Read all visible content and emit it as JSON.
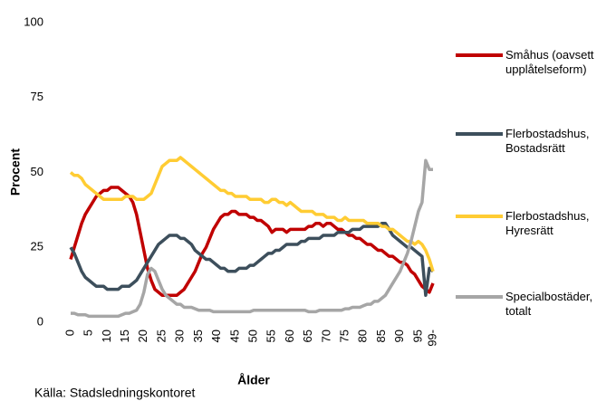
{
  "chart_data": {
    "type": "line",
    "y_label": "Procent",
    "x_label": "Ålder",
    "source": "Källa: Stadsledningskontoret",
    "x": [
      0,
      1,
      2,
      3,
      4,
      5,
      6,
      7,
      8,
      9,
      10,
      11,
      12,
      13,
      14,
      15,
      16,
      17,
      18,
      19,
      20,
      21,
      22,
      23,
      24,
      25,
      26,
      27,
      28,
      29,
      30,
      31,
      32,
      33,
      34,
      35,
      36,
      37,
      38,
      39,
      40,
      41,
      42,
      43,
      44,
      45,
      46,
      47,
      48,
      49,
      50,
      51,
      52,
      53,
      54,
      55,
      56,
      57,
      58,
      59,
      60,
      61,
      62,
      63,
      64,
      65,
      66,
      67,
      68,
      69,
      70,
      71,
      72,
      73,
      74,
      75,
      76,
      77,
      78,
      79,
      80,
      81,
      82,
      83,
      84,
      85,
      86,
      87,
      88,
      89,
      90,
      91,
      92,
      93,
      94,
      95,
      96,
      97,
      98,
      99
    ],
    "xlim": [
      0,
      99
    ],
    "xticks": [
      0,
      5,
      10,
      15,
      20,
      25,
      30,
      35,
      40,
      45,
      50,
      55,
      60,
      65,
      70,
      75,
      80,
      85,
      90,
      95,
      {
        "value": 99,
        "label": "99-"
      }
    ],
    "ylim": [
      0,
      100
    ],
    "yticks": [
      0,
      25,
      50,
      75,
      100
    ],
    "series": [
      {
        "name": "Småhus (oavsett upplåtelseform)",
        "color": "#c00000",
        "values": [
          21,
          25,
          29,
          33,
          36,
          38,
          40,
          42,
          43,
          44,
          44,
          45,
          45,
          45,
          44,
          43,
          42,
          40,
          36,
          30,
          24,
          18,
          14,
          11,
          10,
          9,
          9,
          9,
          9,
          9,
          10,
          11,
          13,
          15,
          17,
          20,
          23,
          25,
          28,
          31,
          33,
          35,
          36,
          36,
          37,
          37,
          36,
          36,
          36,
          35,
          35,
          34,
          34,
          33,
          32,
          30,
          31,
          31,
          31,
          30,
          31,
          31,
          31,
          31,
          31,
          32,
          32,
          33,
          33,
          32,
          33,
          33,
          32,
          31,
          31,
          30,
          29,
          29,
          28,
          28,
          27,
          26,
          26,
          25,
          24,
          24,
          23,
          22,
          22,
          21,
          20,
          20,
          19,
          17,
          16,
          14,
          12,
          11,
          10,
          13
        ]
      },
      {
        "name": "Flerbostadshus, Bostadsrätt",
        "color": "#3d4f5c",
        "values": [
          25,
          23,
          20,
          17,
          15,
          14,
          13,
          12,
          12,
          12,
          11,
          11,
          11,
          11,
          12,
          12,
          12,
          13,
          14,
          16,
          18,
          20,
          22,
          24,
          26,
          27,
          28,
          29,
          29,
          29,
          28,
          28,
          27,
          26,
          24,
          23,
          22,
          21,
          21,
          20,
          19,
          18,
          18,
          17,
          17,
          17,
          18,
          18,
          18,
          19,
          19,
          20,
          21,
          22,
          23,
          23,
          24,
          24,
          25,
          26,
          26,
          26,
          26,
          27,
          27,
          28,
          28,
          28,
          28,
          29,
          29,
          29,
          29,
          30,
          30,
          30,
          30,
          31,
          31,
          31,
          32,
          32,
          32,
          32,
          32,
          33,
          33,
          31,
          29,
          28,
          27,
          26,
          25,
          25,
          24,
          23,
          22,
          9,
          18,
          17
        ]
      },
      {
        "name": "Flerbostadshus, Hyresrätt",
        "color": "#ffcc33",
        "values": [
          50,
          49,
          49,
          48,
          46,
          45,
          44,
          43,
          42,
          41,
          41,
          41,
          41,
          41,
          41,
          42,
          42,
          42,
          41,
          41,
          41,
          42,
          43,
          46,
          49,
          52,
          53,
          54,
          54,
          54,
          55,
          54,
          53,
          52,
          51,
          50,
          49,
          48,
          47,
          46,
          45,
          44,
          44,
          43,
          43,
          42,
          42,
          42,
          42,
          41,
          41,
          41,
          41,
          40,
          40,
          41,
          41,
          40,
          40,
          39,
          40,
          39,
          38,
          37,
          37,
          37,
          37,
          36,
          36,
          36,
          35,
          35,
          35,
          34,
          34,
          35,
          34,
          34,
          34,
          34,
          34,
          33,
          33,
          33,
          33,
          32,
          32,
          31,
          31,
          30,
          29,
          28,
          27,
          27,
          26,
          27,
          26,
          24,
          21,
          17
        ]
      },
      {
        "name": "Specialbostäder, totalt",
        "color": "#a6a6a6",
        "values": [
          3,
          3,
          2.5,
          2.5,
          2.5,
          2,
          2,
          2,
          2,
          2,
          2,
          2,
          2,
          2,
          2.5,
          3,
          3,
          3.5,
          4,
          6,
          10,
          16,
          18,
          17,
          14,
          11,
          9,
          8,
          7,
          6,
          6,
          5,
          5,
          5,
          4.5,
          4,
          4,
          4,
          4,
          3.5,
          3.5,
          3.5,
          3.5,
          3.5,
          3.5,
          3.5,
          3.5,
          3.5,
          3.5,
          3.5,
          4,
          4,
          4,
          4,
          4,
          4,
          4,
          4,
          4,
          4,
          4,
          4,
          4,
          4,
          4,
          3.5,
          3.5,
          3.5,
          4,
          4,
          4,
          4,
          4,
          4,
          4,
          4.5,
          4.5,
          5,
          5,
          5,
          5.5,
          6,
          6,
          7,
          7,
          8,
          9,
          11,
          13,
          15,
          17,
          20,
          23,
          27,
          32,
          37,
          40,
          54,
          51,
          51
        ]
      }
    ]
  }
}
